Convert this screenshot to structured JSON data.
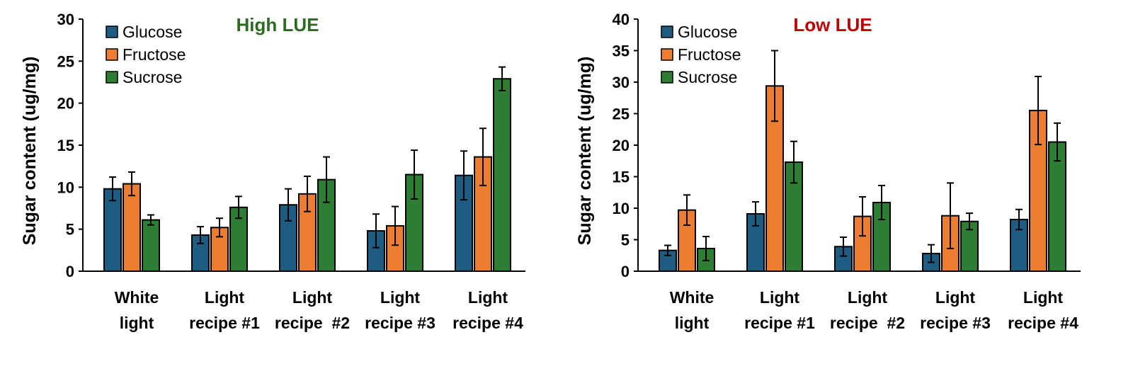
{
  "chart_data": [
    {
      "type": "bar",
      "title": "High LUE",
      "title_color": "#2E6B22",
      "ylabel": "Sugar content (ug/mg)",
      "xlabel": "",
      "ylim": [
        0,
        30
      ],
      "yticks": [
        0,
        5,
        10,
        15,
        20,
        25,
        30
      ],
      "grid": false,
      "legend_position": "top-left",
      "categories": [
        [
          "White",
          "light"
        ],
        [
          "Light",
          "recipe #1"
        ],
        [
          "Light",
          "recipe  #2"
        ],
        [
          "Light",
          "recipe #3"
        ],
        [
          "Light",
          "recipe #4"
        ]
      ],
      "series": [
        {
          "name": "Glucose",
          "color": "#1F5C82",
          "values": [
            9.8,
            4.3,
            7.9,
            4.8,
            11.4
          ],
          "errors": [
            1.4,
            1.0,
            1.9,
            2.0,
            2.9
          ]
        },
        {
          "name": "Fructose",
          "color": "#ED7D31",
          "values": [
            10.4,
            5.2,
            9.2,
            5.4,
            13.6
          ],
          "errors": [
            1.4,
            1.1,
            2.1,
            2.3,
            3.4
          ]
        },
        {
          "name": "Sucrose",
          "color": "#2E7D32",
          "values": [
            6.1,
            7.6,
            10.9,
            11.5,
            22.9
          ],
          "errors": [
            0.6,
            1.3,
            2.7,
            2.9,
            1.4
          ]
        }
      ]
    },
    {
      "type": "bar",
      "title": "Low LUE",
      "title_color": "#C00000",
      "ylabel": "Sugar content (ug/mg)",
      "xlabel": "",
      "ylim": [
        0,
        40
      ],
      "yticks": [
        0,
        5,
        10,
        15,
        20,
        25,
        30,
        35,
        40
      ],
      "grid": false,
      "legend_position": "top-left",
      "categories": [
        [
          "White",
          "light"
        ],
        [
          "Light",
          "recipe #1"
        ],
        [
          "Light",
          "recipe  #2"
        ],
        [
          "Light",
          "recipe #3"
        ],
        [
          "Light",
          "recipe #4"
        ]
      ],
      "series": [
        {
          "name": "Glucose",
          "color": "#1F5C82",
          "values": [
            3.3,
            9.1,
            3.9,
            2.8,
            8.2
          ],
          "errors": [
            0.8,
            1.9,
            1.5,
            1.4,
            1.6
          ]
        },
        {
          "name": "Fructose",
          "color": "#ED7D31",
          "values": [
            9.7,
            29.4,
            8.7,
            8.8,
            25.5
          ],
          "errors": [
            2.4,
            5.6,
            3.1,
            5.2,
            5.4
          ]
        },
        {
          "name": "Sucrose",
          "color": "#2E7D32",
          "values": [
            3.6,
            17.3,
            10.9,
            7.9,
            20.5
          ],
          "errors": [
            1.9,
            3.3,
            2.7,
            1.3,
            3.0
          ]
        }
      ]
    }
  ]
}
